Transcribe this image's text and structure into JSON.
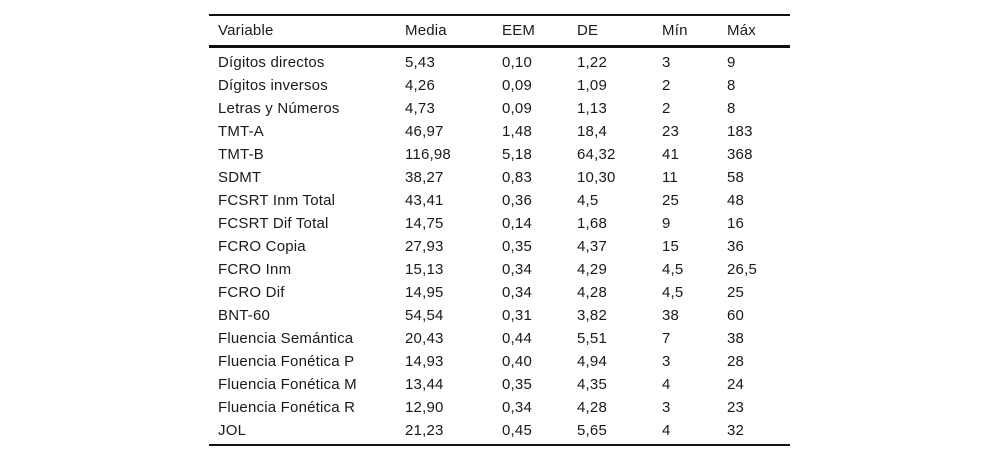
{
  "table": {
    "headers": [
      "Variable",
      "Media",
      "EEM",
      "DE",
      "Mín",
      "Máx"
    ],
    "rows": [
      [
        "Dígitos directos",
        "5,43",
        "0,10",
        "1,22",
        "3",
        "9"
      ],
      [
        "Dígitos inversos",
        "4,26",
        "0,09",
        "1,09",
        "2",
        "8"
      ],
      [
        "Letras y Números",
        "4,73",
        "0,09",
        "1,13",
        "2",
        "8"
      ],
      [
        "TMT-A",
        "46,97",
        "1,48",
        "18,4",
        "23",
        "183"
      ],
      [
        "TMT-B",
        "116,98",
        "5,18",
        "64,32",
        "41",
        "368"
      ],
      [
        "SDMT",
        "38,27",
        "0,83",
        "10,30",
        "11",
        "58"
      ],
      [
        "FCSRT Inm Total",
        "43,41",
        "0,36",
        "4,5",
        "25",
        "48"
      ],
      [
        "FCSRT Dif Total",
        "14,75",
        "0,14",
        "1,68",
        "9",
        "16"
      ],
      [
        "FCRO Copia",
        "27,93",
        "0,35",
        "4,37",
        "15",
        "36"
      ],
      [
        "FCRO Inm",
        "15,13",
        "0,34",
        "4,29",
        "4,5",
        "26,5"
      ],
      [
        "FCRO Dif",
        "14,95",
        "0,34",
        "4,28",
        "4,5",
        "25"
      ],
      [
        "BNT-60",
        "54,54",
        "0,31",
        "3,82",
        "38",
        "60"
      ],
      [
        "Fluencia Semántica",
        "20,43",
        "0,44",
        "5,51",
        "7",
        "38"
      ],
      [
        "Fluencia Fonética P",
        "14,93",
        "0,40",
        "4,94",
        "3",
        "28"
      ],
      [
        "Fluencia Fonética M",
        "13,44",
        "0,35",
        "4,35",
        "4",
        "24"
      ],
      [
        "Fluencia Fonética R",
        "12,90",
        "0,34",
        "4,28",
        "3",
        "23"
      ],
      [
        "JOL",
        "21,23",
        "0,45",
        "5,65",
        "4",
        "32"
      ]
    ],
    "colors": {
      "text": "#1a1a1a",
      "rule": "#111111",
      "background": "#ffffff"
    }
  }
}
